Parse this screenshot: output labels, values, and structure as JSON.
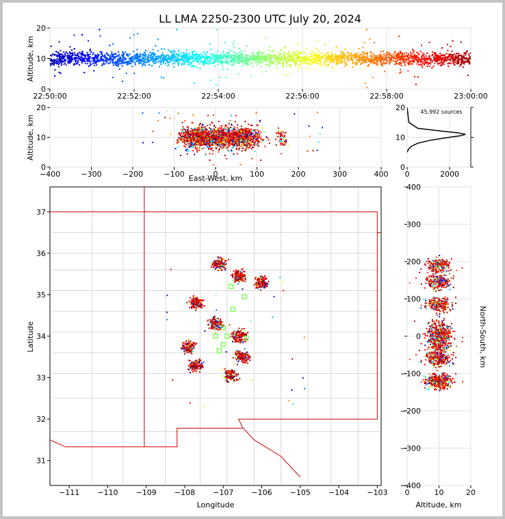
{
  "title": "LL LMA 2250-2300 UTC July 20, 2024",
  "chart_data": [
    {
      "type": "scatter",
      "panel": "time-height",
      "ylabel": "Altitude, km",
      "xlim": [
        "22:50:00",
        "23:00:00"
      ],
      "ylim": [
        0,
        20
      ],
      "x_ticks": [
        "22:50:00",
        "22:52:00",
        "22:54:00",
        "22:56:00",
        "22:58:00",
        "23:00:00"
      ],
      "y_ticks": [
        "0",
        "10",
        "20"
      ],
      "color_scale": [
        "#0000c8",
        "#0060ff",
        "#00c8ff",
        "#40ffb0",
        "#c8ff30",
        "#ffc000",
        "#ff4000",
        "#b00000"
      ],
      "series": [
        {
          "altitude_center_km": 10,
          "altitude_spread_km": 2
        }
      ]
    },
    {
      "type": "scatter",
      "panel": "east-west vs altitude",
      "xlabel": "East-West, km",
      "ylabel": "Altitude, km",
      "xlim": [
        -400,
        400
      ],
      "ylim": [
        0,
        20
      ],
      "x_ticks": [
        "-400",
        "-300",
        "-200",
        "-100",
        "0",
        "100",
        "200",
        "300",
        "400"
      ],
      "y_ticks": [
        "0",
        "10",
        "20"
      ],
      "clusters_east_west_km": [
        -50,
        0,
        65,
        160
      ]
    },
    {
      "type": "line",
      "panel": "altitude histogram",
      "annotation": "45,992 sources",
      "xlim": [
        0,
        3000
      ],
      "ylim": [
        0,
        20
      ],
      "x_ticks": [
        "0",
        "2000"
      ],
      "y_ticks": [
        "0",
        "10",
        "20"
      ],
      "altitude_km": [
        5,
        6,
        7,
        8,
        9,
        10,
        10.5,
        11,
        11.5,
        12,
        13,
        15,
        20
      ],
      "source_count": [
        0,
        60,
        200,
        500,
        1100,
        2000,
        2500,
        2750,
        2400,
        1700,
        500,
        80,
        0
      ]
    },
    {
      "type": "scatter",
      "panel": "plan view map",
      "xlabel": "Longitude",
      "ylabel": "Latitude",
      "xlim": [
        -111.5,
        -102.9
      ],
      "ylim": [
        30.4,
        37.6
      ],
      "x_ticks": [
        "-111",
        "-110",
        "-109",
        "-108",
        "-107",
        "-106",
        "-105",
        "-104",
        "-103"
      ],
      "y_ticks": [
        "31",
        "32",
        "33",
        "34",
        "35",
        "36",
        "37"
      ],
      "storm_cells": [
        {
          "lon": -107.1,
          "lat": 35.75
        },
        {
          "lon": -106.6,
          "lat": 35.45
        },
        {
          "lon": -106.0,
          "lat": 35.3
        },
        {
          "lon": -107.7,
          "lat": 34.8
        },
        {
          "lon": -107.2,
          "lat": 34.3
        },
        {
          "lon": -106.6,
          "lat": 34.0
        },
        {
          "lon": -107.9,
          "lat": 33.75
        },
        {
          "lon": -107.7,
          "lat": 33.3
        },
        {
          "lon": -106.8,
          "lat": 33.05
        },
        {
          "lon": -106.5,
          "lat": 33.5
        }
      ],
      "station_markers": [
        {
          "lon": -106.8,
          "lat": 35.2
        },
        {
          "lon": -106.45,
          "lat": 34.95
        },
        {
          "lon": -106.75,
          "lat": 34.65
        },
        {
          "lon": -107.0,
          "lat": 34.2
        },
        {
          "lon": -107.2,
          "lat": 34.0
        },
        {
          "lon": -107.0,
          "lat": 33.8
        },
        {
          "lon": -106.9,
          "lat": 34.0
        },
        {
          "lon": -107.1,
          "lat": 33.65
        },
        {
          "lon": -106.4,
          "lat": 33.95
        }
      ]
    },
    {
      "type": "scatter",
      "panel": "altitude vs north-south",
      "xlabel": "Altitude, km",
      "ylabel": "North-South, km",
      "xlim": [
        0,
        20
      ],
      "ylim": [
        -400,
        400
      ],
      "x_ticks": [
        "0",
        "10",
        "20"
      ],
      "y_ticks": [
        "-400",
        "-300",
        "-200",
        "-100",
        "0",
        "100",
        "200",
        "300",
        "400"
      ],
      "clusters_north_south_km": [
        190,
        145,
        85,
        0,
        -60,
        -120
      ]
    }
  ]
}
